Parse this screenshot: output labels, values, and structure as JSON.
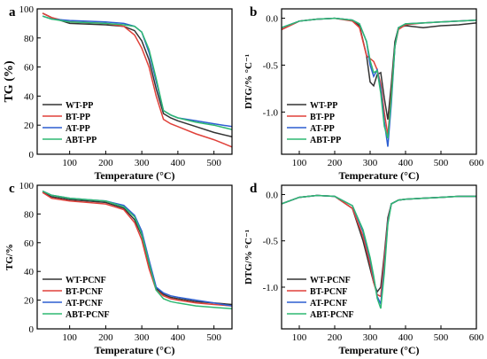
{
  "chart_data": [
    {
      "panel_label": "a",
      "type": "line",
      "xlabel": "Temperature (°C)",
      "ylabel": "TG (%)",
      "xlim": [
        10,
        550
      ],
      "ylim": [
        0,
        100
      ],
      "xticks": [
        "100",
        "200",
        "300",
        "400",
        "500"
      ],
      "yticks": [
        "0",
        "20",
        "40",
        "60",
        "80",
        "100"
      ],
      "legend_position": "bottom-left",
      "series": [
        {
          "name": "WT-PP",
          "color": "#333333",
          "x": [
            25,
            50,
            100,
            200,
            250,
            280,
            300,
            320,
            340,
            360,
            380,
            400,
            450,
            500,
            550
          ],
          "y": [
            97,
            94,
            90,
            89,
            88,
            85,
            78,
            65,
            45,
            28,
            25,
            23,
            19,
            15,
            12
          ]
        },
        {
          "name": "BT-PP",
          "color": "#e0413a",
          "x": [
            25,
            50,
            100,
            200,
            250,
            280,
            300,
            320,
            340,
            360,
            380,
            400,
            450,
            500,
            550
          ],
          "y": [
            97,
            94,
            91,
            90,
            88,
            82,
            73,
            60,
            40,
            24,
            21,
            19,
            14,
            10,
            5
          ]
        },
        {
          "name": "AT-PP",
          "color": "#2d5fd1",
          "x": [
            25,
            50,
            100,
            200,
            250,
            280,
            300,
            320,
            340,
            360,
            380,
            400,
            450,
            500,
            550
          ],
          "y": [
            95,
            93,
            92,
            91,
            90,
            88,
            84,
            70,
            50,
            30,
            27,
            25,
            23,
            21,
            19
          ]
        },
        {
          "name": "ABT-PP",
          "color": "#2eb872",
          "x": [
            25,
            50,
            100,
            200,
            250,
            280,
            300,
            320,
            340,
            360,
            380,
            400,
            450,
            500,
            550
          ],
          "y": [
            95,
            93,
            91,
            90,
            89,
            88,
            84,
            72,
            52,
            30,
            27,
            25,
            22,
            20,
            17
          ]
        }
      ]
    },
    {
      "panel_label": "b",
      "type": "line",
      "xlabel": "Temperature (°C)",
      "ylabel": "DTG/% °C⁻¹",
      "xlim": [
        50,
        600
      ],
      "ylim": [
        -1.45,
        0.1
      ],
      "xticks": [
        "100",
        "200",
        "300",
        "400",
        "500",
        "600"
      ],
      "yticks": [
        "0.0",
        "-0.5",
        "-1.0"
      ],
      "legend_position": "bottom-left",
      "series": [
        {
          "name": "WT-PP",
          "color": "#333333",
          "x": [
            50,
            100,
            150,
            200,
            250,
            270,
            290,
            300,
            310,
            320,
            330,
            340,
            350,
            360,
            370,
            380,
            400,
            450,
            500,
            550,
            600
          ],
          "y": [
            -0.12,
            -0.03,
            -0.01,
            0,
            -0.02,
            -0.08,
            -0.4,
            -0.68,
            -0.72,
            -0.6,
            -0.58,
            -0.85,
            -1.08,
            -0.7,
            -0.25,
            -0.1,
            -0.08,
            -0.1,
            -0.08,
            -0.07,
            -0.05
          ]
        },
        {
          "name": "BT-PP",
          "color": "#e0413a",
          "x": [
            50,
            100,
            150,
            200,
            250,
            270,
            290,
            300,
            310,
            320,
            330,
            340,
            350,
            360,
            370,
            380,
            400,
            450,
            500,
            550,
            600
          ],
          "y": [
            -0.12,
            -0.03,
            -0.01,
            0,
            -0.03,
            -0.1,
            -0.4,
            -0.43,
            -0.46,
            -0.55,
            -0.7,
            -1.0,
            -1.25,
            -0.8,
            -0.3,
            -0.12,
            -0.07,
            -0.05,
            -0.04,
            -0.03,
            -0.02
          ]
        },
        {
          "name": "AT-PP",
          "color": "#2d5fd1",
          "x": [
            50,
            100,
            150,
            200,
            250,
            270,
            290,
            300,
            310,
            320,
            330,
            340,
            350,
            360,
            370,
            380,
            400,
            450,
            500,
            550,
            600
          ],
          "y": [
            -0.1,
            -0.03,
            -0.01,
            0,
            -0.02,
            -0.06,
            -0.25,
            -0.5,
            -0.62,
            -0.55,
            -0.75,
            -1.1,
            -1.37,
            -0.9,
            -0.3,
            -0.1,
            -0.06,
            -0.05,
            -0.04,
            -0.03,
            -0.02
          ]
        },
        {
          "name": "ABT-PP",
          "color": "#2eb872",
          "x": [
            50,
            100,
            150,
            200,
            250,
            270,
            290,
            300,
            310,
            320,
            330,
            340,
            350,
            360,
            370,
            380,
            400,
            450,
            500,
            550,
            600
          ],
          "y": [
            -0.1,
            -0.03,
            -0.01,
            0,
            -0.02,
            -0.06,
            -0.25,
            -0.45,
            -0.58,
            -0.56,
            -0.8,
            -1.15,
            -1.28,
            -0.85,
            -0.3,
            -0.1,
            -0.06,
            -0.05,
            -0.04,
            -0.03,
            -0.02
          ]
        }
      ]
    },
    {
      "panel_label": "c",
      "type": "line",
      "xlabel": "Temperature (°C)",
      "ylabel": "TG/%",
      "xlim": [
        10,
        550
      ],
      "ylim": [
        0,
        100
      ],
      "xticks": [
        "100",
        "200",
        "300",
        "400",
        "500"
      ],
      "yticks": [
        "0",
        "20",
        "40",
        "60",
        "80",
        "100"
      ],
      "legend_position": "bottom-left",
      "series": [
        {
          "name": "WT-PCNF",
          "color": "#333333",
          "x": [
            25,
            50,
            100,
            150,
            200,
            250,
            280,
            300,
            320,
            340,
            360,
            380,
            400,
            450,
            500,
            550
          ],
          "y": [
            95,
            92,
            90,
            89,
            88,
            84,
            76,
            65,
            45,
            28,
            24,
            22,
            21,
            19,
            18,
            17
          ]
        },
        {
          "name": "BT-PCNF",
          "color": "#e0413a",
          "x": [
            25,
            50,
            100,
            150,
            200,
            250,
            280,
            300,
            320,
            340,
            360,
            380,
            400,
            450,
            500,
            550
          ],
          "y": [
            95,
            91,
            89,
            88,
            87,
            83,
            74,
            62,
            42,
            27,
            23,
            21,
            20,
            18,
            17,
            16
          ]
        },
        {
          "name": "AT-PCNF",
          "color": "#2d5fd1",
          "x": [
            25,
            50,
            100,
            150,
            200,
            250,
            280,
            300,
            320,
            340,
            360,
            380,
            400,
            450,
            500,
            550
          ],
          "y": [
            96,
            93,
            91,
            90,
            89,
            86,
            79,
            68,
            48,
            29,
            25,
            23,
            22,
            20,
            18,
            16
          ]
        },
        {
          "name": "ABT-PCNF",
          "color": "#2eb872",
          "x": [
            25,
            50,
            100,
            150,
            200,
            250,
            280,
            300,
            320,
            340,
            360,
            380,
            400,
            450,
            500,
            550
          ],
          "y": [
            96,
            93,
            91,
            90,
            89,
            85,
            78,
            66,
            46,
            27,
            21,
            19,
            18,
            16,
            15,
            14
          ]
        }
      ]
    },
    {
      "panel_label": "d",
      "type": "line",
      "xlabel": "Temperature (°C)",
      "ylabel": "DTG/% °C⁻¹",
      "xlim": [
        50,
        600
      ],
      "ylim": [
        -1.45,
        0.1
      ],
      "xticks": [
        "100",
        "200",
        "300",
        "400",
        "500",
        "600"
      ],
      "yticks": [
        "0.0",
        "-0.5",
        "-1.0"
      ],
      "legend_position": "bottom-left",
      "series": [
        {
          "name": "WT-PCNF",
          "color": "#333333",
          "x": [
            50,
            100,
            150,
            200,
            250,
            280,
            300,
            310,
            320,
            330,
            340,
            350,
            360,
            380,
            400,
            450,
            500,
            550,
            600
          ],
          "y": [
            -0.1,
            -0.03,
            -0.01,
            -0.02,
            -0.15,
            -0.5,
            -0.8,
            -0.95,
            -1.05,
            -1.0,
            -0.65,
            -0.25,
            -0.1,
            -0.06,
            -0.05,
            -0.04,
            -0.03,
            -0.02,
            -0.02
          ]
        },
        {
          "name": "BT-PCNF",
          "color": "#e0413a",
          "x": [
            50,
            100,
            150,
            200,
            250,
            280,
            300,
            310,
            320,
            330,
            340,
            350,
            360,
            380,
            400,
            450,
            500,
            550,
            600
          ],
          "y": [
            -0.1,
            -0.03,
            -0.01,
            -0.02,
            -0.15,
            -0.45,
            -0.75,
            -0.95,
            -1.08,
            -1.1,
            -0.7,
            -0.28,
            -0.1,
            -0.06,
            -0.05,
            -0.04,
            -0.03,
            -0.02,
            -0.02
          ]
        },
        {
          "name": "AT-PCNF",
          "color": "#2d5fd1",
          "x": [
            50,
            100,
            150,
            200,
            250,
            280,
            300,
            310,
            320,
            330,
            340,
            350,
            360,
            380,
            400,
            450,
            500,
            550,
            600
          ],
          "y": [
            -0.1,
            -0.03,
            -0.01,
            -0.02,
            -0.12,
            -0.4,
            -0.7,
            -0.9,
            -1.1,
            -1.18,
            -0.8,
            -0.3,
            -0.1,
            -0.06,
            -0.05,
            -0.04,
            -0.03,
            -0.02,
            -0.02
          ]
        },
        {
          "name": "ABT-PCNF",
          "color": "#2eb872",
          "x": [
            50,
            100,
            150,
            200,
            250,
            280,
            300,
            310,
            320,
            330,
            340,
            350,
            360,
            380,
            400,
            450,
            500,
            550,
            600
          ],
          "y": [
            -0.1,
            -0.03,
            -0.01,
            -0.02,
            -0.12,
            -0.38,
            -0.68,
            -0.88,
            -1.12,
            -1.23,
            -0.85,
            -0.32,
            -0.1,
            -0.06,
            -0.05,
            -0.04,
            -0.03,
            -0.02,
            -0.02
          ]
        }
      ]
    }
  ]
}
